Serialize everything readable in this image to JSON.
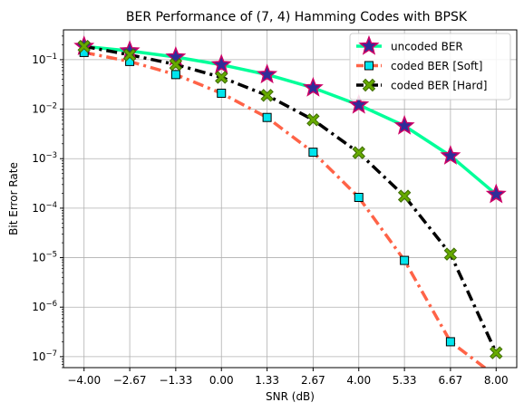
{
  "chart_data": {
    "type": "line",
    "title": "BER Performance of (7, 4) Hamming Codes with BPSK",
    "xlabel": "SNR (dB)",
    "ylabel": "Bit Error Rate",
    "xlim": [
      -4.6,
      8.6
    ],
    "ylim": [
      6e-08,
      0.4
    ],
    "yscale": "log",
    "grid": true,
    "legend_position": "top-right",
    "x_ticks": [
      {
        "value": -4.0,
        "label": "−4.00"
      },
      {
        "value": -2.67,
        "label": "−2.67"
      },
      {
        "value": -1.33,
        "label": "−1.33"
      },
      {
        "value": 0.0,
        "label": "0.00"
      },
      {
        "value": 1.33,
        "label": "1.33"
      },
      {
        "value": 2.67,
        "label": "2.67"
      },
      {
        "value": 4.0,
        "label": "4.00"
      },
      {
        "value": 5.33,
        "label": "5.33"
      },
      {
        "value": 6.67,
        "label": "6.67"
      },
      {
        "value": 8.0,
        "label": "8.00"
      }
    ],
    "y_ticks": [
      {
        "value": 0.1,
        "base": "10",
        "exp": "−1"
      },
      {
        "value": 0.01,
        "base": "10",
        "exp": "−2"
      },
      {
        "value": 0.001,
        "base": "10",
        "exp": "−3"
      },
      {
        "value": 0.0001,
        "base": "10",
        "exp": "−4"
      },
      {
        "value": 1e-05,
        "base": "10",
        "exp": "−5"
      },
      {
        "value": 1e-06,
        "base": "10",
        "exp": "−6"
      },
      {
        "value": 1e-07,
        "base": "10",
        "exp": "−7"
      }
    ],
    "x": [
      -4.0,
      -2.67,
      -1.33,
      0.0,
      1.33,
      2.67,
      4.0,
      5.33,
      6.67,
      8.0
    ],
    "series": [
      {
        "name": "uncoded BER",
        "color": "#00ff99",
        "dash": "solid",
        "marker": "star",
        "marker_face": "#2e2e99",
        "marker_edge": "#cc0066",
        "values": [
          0.186,
          0.15,
          0.113,
          0.079,
          0.05,
          0.027,
          0.0122,
          0.0046,
          0.00114,
          0.00019
        ]
      },
      {
        "name": "coded BER [Soft]",
        "color": "#ff6347",
        "dash": "dashdot",
        "marker": "square",
        "marker_face": "#00e5ee",
        "marker_edge": "#000000",
        "values": [
          0.14,
          0.092,
          0.05,
          0.021,
          0.0068,
          0.00135,
          0.000165,
          8.8e-06,
          2e-07,
          4e-08
        ]
      },
      {
        "name": "coded BER [Hard]",
        "color": "#000000",
        "dash": "dashdot",
        "marker": "x",
        "marker_face": "#66aa00",
        "marker_edge": "#3d6b00",
        "values": [
          0.186,
          0.125,
          0.08,
          0.044,
          0.019,
          0.0061,
          0.00132,
          0.000175,
          1.18e-05,
          1.2e-07
        ]
      }
    ]
  }
}
